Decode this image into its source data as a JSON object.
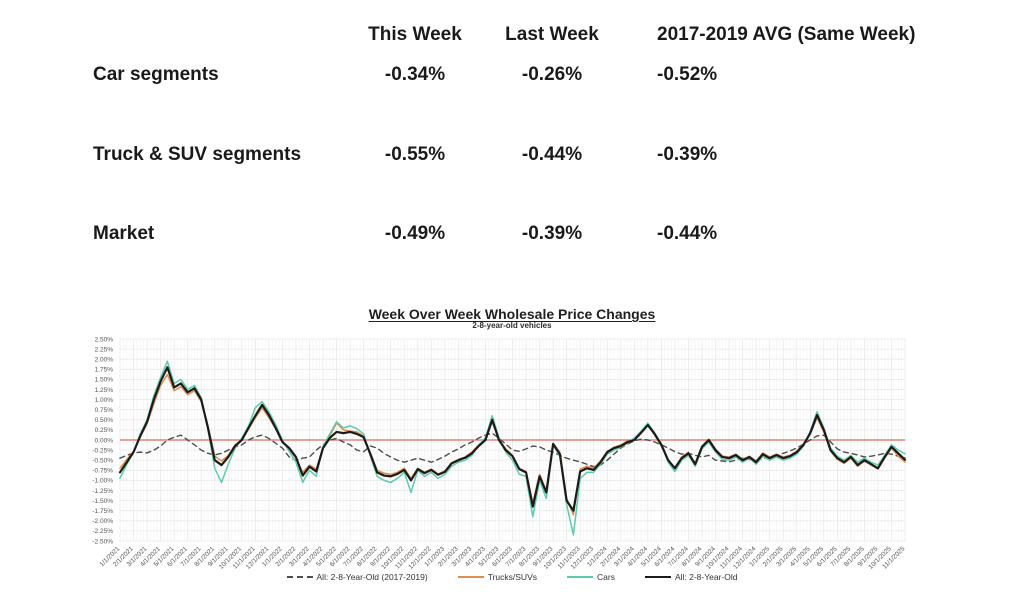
{
  "table": {
    "columns": [
      "This Week",
      "Last Week",
      "2017-2019 AVG (Same Week)"
    ],
    "rows": [
      {
        "label": "Car segments",
        "this_week": "-0.34%",
        "last_week": "-0.26%",
        "avg_2017_2019": "-0.52%"
      },
      {
        "label": "Truck & SUV segments",
        "this_week": "-0.55%",
        "last_week": "-0.44%",
        "avg_2017_2019": "-0.39%"
      },
      {
        "label": "Market",
        "this_week": "-0.49%",
        "last_week": "-0.39%",
        "avg_2017_2019": "-0.44%"
      }
    ]
  },
  "chart_data": {
    "type": "line",
    "title": "Week Over Week Wholesale Price Changes",
    "subtitle": "2-8-year-old vehicles",
    "ylabel": "",
    "xlabel": "",
    "ylim": [
      -2.5,
      2.5
    ],
    "y_tick_step": 0.25,
    "grid": true,
    "legend_position": "bottom",
    "zero_line_color": "#d96c5f",
    "x_step_months": 0.5,
    "y_tick_labels": [
      "2.50%",
      "2.25%",
      "2.00%",
      "1.75%",
      "1.50%",
      "1.25%",
      "1.00%",
      "0.75%",
      "0.50%",
      "0.25%",
      "0.00%",
      "-0.25%",
      "-0.50%",
      "-0.75%",
      "-1.00%",
      "-1.25%",
      "-1.50%",
      "-1.75%",
      "-2.00%",
      "-2.25%",
      "-2.50%"
    ],
    "x_tick_labels": [
      "1/1/2021",
      "2/1/2021",
      "3/1/2021",
      "4/1/2021",
      "5/1/2021",
      "6/1/2021",
      "7/1/2021",
      "8/1/2021",
      "9/1/2021",
      "10/1/2021",
      "11/1/2021",
      "12/1/2021",
      "1/1/2022",
      "2/1/2022",
      "3/1/2022",
      "4/1/2022",
      "5/1/2022",
      "6/1/2022",
      "7/1/2022",
      "8/1/2022",
      "9/1/2022",
      "10/1/2022",
      "11/1/2022",
      "12/1/2022",
      "1/1/2023",
      "2/1/2023",
      "3/1/2023",
      "4/1/2023",
      "5/1/2023",
      "6/1/2023",
      "7/1/2023",
      "8/1/2023",
      "9/1/2023",
      "10/1/2023",
      "11/1/2023",
      "12/1/2023",
      "1/1/2024",
      "2/1/2024",
      "3/1/2024",
      "4/1/2024",
      "5/1/2024",
      "6/1/2024",
      "7/1/2024",
      "8/1/2024",
      "9/1/2024",
      "10/1/2024",
      "11/1/2024",
      "12/1/2024",
      "1/1/2025",
      "2/1/2025",
      "3/1/2025",
      "4/1/2025",
      "5/1/2025",
      "6/1/2025",
      "7/1/2025",
      "8/1/2025",
      "9/1/2025",
      "10/1/2025",
      "11/1/2025"
    ],
    "series": [
      {
        "name": "All: 2-8-Year-Old (2017-2019)",
        "color": "#4d4d4d",
        "dash": true,
        "width": 1.4,
        "values": [
          -0.45,
          -0.38,
          -0.32,
          -0.3,
          -0.32,
          -0.25,
          -0.15,
          0.0,
          0.07,
          0.12,
          0.0,
          -0.12,
          -0.25,
          -0.33,
          -0.37,
          -0.33,
          -0.25,
          -0.17,
          -0.12,
          0.0,
          0.08,
          0.12,
          0.04,
          -0.08,
          -0.2,
          -0.42,
          -0.5,
          -0.45,
          -0.42,
          -0.25,
          -0.12,
          0.0,
          0.04,
          -0.05,
          -0.12,
          -0.25,
          -0.29,
          -0.15,
          -0.2,
          -0.33,
          -0.42,
          -0.5,
          -0.55,
          -0.5,
          -0.45,
          -0.5,
          -0.55,
          -0.48,
          -0.4,
          -0.3,
          -0.22,
          -0.12,
          -0.05,
          0.05,
          0.12,
          0.17,
          0.04,
          -0.1,
          -0.25,
          -0.28,
          -0.22,
          -0.15,
          -0.17,
          -0.25,
          -0.3,
          -0.38,
          -0.45,
          -0.5,
          -0.54,
          -0.6,
          -0.66,
          -0.62,
          -0.5,
          -0.35,
          -0.2,
          -0.1,
          -0.02,
          0.02,
          0.0,
          -0.05,
          -0.12,
          -0.2,
          -0.29,
          -0.35,
          -0.33,
          -0.38,
          -0.42,
          -0.38,
          -0.5,
          -0.52,
          -0.54,
          -0.5,
          -0.45,
          -0.48,
          -0.5,
          -0.46,
          -0.42,
          -0.38,
          -0.33,
          -0.27,
          -0.2,
          -0.1,
          0.0,
          0.1,
          0.12,
          -0.05,
          -0.22,
          -0.3,
          -0.33,
          -0.37,
          -0.42,
          -0.4,
          -0.37,
          -0.33,
          -0.35,
          -0.4,
          -0.44
        ]
      },
      {
        "name": "Trucks/SUVs",
        "color": "#dd8f4e",
        "dash": false,
        "width": 1.5,
        "values": [
          -0.7,
          -0.48,
          -0.28,
          0.08,
          0.4,
          0.9,
          1.35,
          1.62,
          1.22,
          1.32,
          1.12,
          1.22,
          0.95,
          0.35,
          -0.4,
          -0.52,
          -0.38,
          -0.12,
          0.0,
          0.28,
          0.55,
          0.8,
          0.55,
          0.28,
          -0.05,
          -0.22,
          -0.45,
          -0.8,
          -0.62,
          -0.72,
          -0.18,
          0.1,
          0.42,
          0.25,
          0.22,
          0.2,
          0.1,
          -0.32,
          -0.75,
          -0.82,
          -0.85,
          -0.8,
          -0.7,
          -0.95,
          -0.7,
          -0.8,
          -0.72,
          -0.84,
          -0.77,
          -0.56,
          -0.48,
          -0.42,
          -0.3,
          -0.12,
          0.02,
          0.45,
          0.0,
          -0.22,
          -0.38,
          -0.7,
          -0.78,
          -1.55,
          -0.85,
          -1.25,
          -0.08,
          -0.3,
          -1.45,
          -1.85,
          -0.72,
          -0.65,
          -0.7,
          -0.52,
          -0.28,
          -0.18,
          -0.12,
          -0.02,
          0.02,
          0.18,
          0.4,
          0.12,
          -0.15,
          -0.52,
          -0.68,
          -0.42,
          -0.3,
          -0.58,
          -0.15,
          0.02,
          -0.22,
          -0.4,
          -0.42,
          -0.35,
          -0.48,
          -0.4,
          -0.52,
          -0.32,
          -0.42,
          -0.35,
          -0.42,
          -0.38,
          -0.28,
          -0.1,
          0.15,
          0.55,
          0.2,
          -0.28,
          -0.48,
          -0.58,
          -0.45,
          -0.65,
          -0.52,
          -0.62,
          -0.72,
          -0.45,
          -0.2,
          -0.4,
          -0.55
        ]
      },
      {
        "name": "Cars",
        "color": "#5ec9ad",
        "dash": false,
        "width": 1.5,
        "values": [
          -0.95,
          -0.6,
          -0.3,
          0.15,
          0.5,
          1.1,
          1.55,
          1.95,
          1.4,
          1.5,
          1.25,
          1.35,
          1.05,
          0.25,
          -0.7,
          -1.05,
          -0.6,
          -0.2,
          0.05,
          0.35,
          0.8,
          0.95,
          0.7,
          0.38,
          0.0,
          -0.28,
          -0.55,
          -1.05,
          -0.75,
          -0.9,
          -0.15,
          0.15,
          0.45,
          0.3,
          0.35,
          0.28,
          0.15,
          -0.4,
          -0.9,
          -1.0,
          -1.05,
          -0.95,
          -0.8,
          -1.3,
          -0.75,
          -0.9,
          -0.8,
          -0.95,
          -0.85,
          -0.65,
          -0.55,
          -0.5,
          -0.38,
          -0.12,
          0.05,
          0.6,
          0.05,
          -0.3,
          -0.5,
          -0.85,
          -0.9,
          -1.9,
          -1.0,
          -1.45,
          -0.12,
          -0.4,
          -1.6,
          -2.35,
          -0.95,
          -0.8,
          -0.8,
          -0.6,
          -0.35,
          -0.25,
          -0.18,
          -0.08,
          0.05,
          0.22,
          0.42,
          0.18,
          -0.1,
          -0.55,
          -0.78,
          -0.5,
          -0.38,
          -0.65,
          -0.22,
          -0.05,
          -0.3,
          -0.48,
          -0.5,
          -0.42,
          -0.55,
          -0.45,
          -0.6,
          -0.4,
          -0.5,
          -0.42,
          -0.5,
          -0.45,
          -0.35,
          -0.15,
          0.22,
          0.7,
          0.3,
          -0.2,
          -0.4,
          -0.5,
          -0.38,
          -0.55,
          -0.45,
          -0.55,
          -0.62,
          -0.38,
          -0.12,
          -0.25,
          -0.34
        ]
      },
      {
        "name": "All: 2-8-Year-Old",
        "color": "#1b1b1b",
        "dash": false,
        "width": 2.2,
        "values": [
          -0.8,
          -0.55,
          -0.3,
          0.1,
          0.45,
          1.0,
          1.45,
          1.8,
          1.3,
          1.4,
          1.18,
          1.28,
          1.0,
          0.3,
          -0.5,
          -0.62,
          -0.42,
          -0.15,
          0.0,
          0.3,
          0.6,
          0.87,
          0.62,
          0.3,
          -0.05,
          -0.2,
          -0.42,
          -0.88,
          -0.66,
          -0.78,
          -0.2,
          0.05,
          0.2,
          0.17,
          0.2,
          0.15,
          0.07,
          -0.35,
          -0.8,
          -0.88,
          -0.9,
          -0.84,
          -0.74,
          -1.0,
          -0.72,
          -0.82,
          -0.74,
          -0.86,
          -0.79,
          -0.58,
          -0.5,
          -0.44,
          -0.33,
          -0.15,
          0.0,
          0.5,
          0.0,
          -0.25,
          -0.4,
          -0.72,
          -0.8,
          -1.65,
          -0.9,
          -1.3,
          -0.1,
          -0.35,
          -1.5,
          -1.75,
          -0.78,
          -0.7,
          -0.74,
          -0.55,
          -0.3,
          -0.2,
          -0.15,
          -0.05,
          0.0,
          0.18,
          0.37,
          0.15,
          -0.12,
          -0.5,
          -0.7,
          -0.45,
          -0.33,
          -0.6,
          -0.17,
          0.0,
          -0.25,
          -0.42,
          -0.45,
          -0.37,
          -0.5,
          -0.42,
          -0.55,
          -0.35,
          -0.45,
          -0.37,
          -0.45,
          -0.4,
          -0.3,
          -0.12,
          0.17,
          0.62,
          0.25,
          -0.25,
          -0.45,
          -0.55,
          -0.42,
          -0.62,
          -0.5,
          -0.6,
          -0.7,
          -0.42,
          -0.17,
          -0.33,
          -0.49
        ]
      }
    ]
  }
}
